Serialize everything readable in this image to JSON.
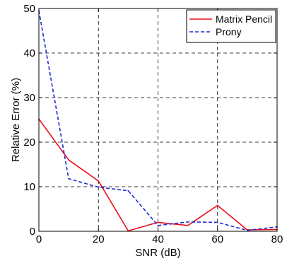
{
  "chart_data": {
    "type": "line",
    "xlabel": "SNR (dB)",
    "ylabel": "Relative Error (%)",
    "xlim": [
      0,
      80
    ],
    "ylim": [
      0,
      50
    ],
    "xticks": [
      0,
      20,
      40,
      60,
      80
    ],
    "yticks": [
      0,
      10,
      20,
      30,
      40,
      50
    ],
    "grid": true,
    "legend_position": "top-right",
    "series": [
      {
        "name": "Matrix Pencil",
        "color": "#e8101a",
        "style": "solid",
        "x": [
          0,
          10,
          20,
          30,
          40,
          50,
          60,
          70,
          80
        ],
        "values": [
          25.2,
          16.0,
          11.3,
          0.1,
          2.0,
          1.3,
          5.8,
          0.3,
          0.4
        ]
      },
      {
        "name": "Prony",
        "color": "#1f2bd6",
        "style": "dashed",
        "x": [
          0,
          10,
          20,
          30,
          40,
          50,
          60,
          70,
          80
        ],
        "values": [
          49.5,
          11.8,
          9.9,
          9.1,
          1.3,
          2.1,
          2.0,
          0.2,
          1.0
        ]
      }
    ]
  }
}
